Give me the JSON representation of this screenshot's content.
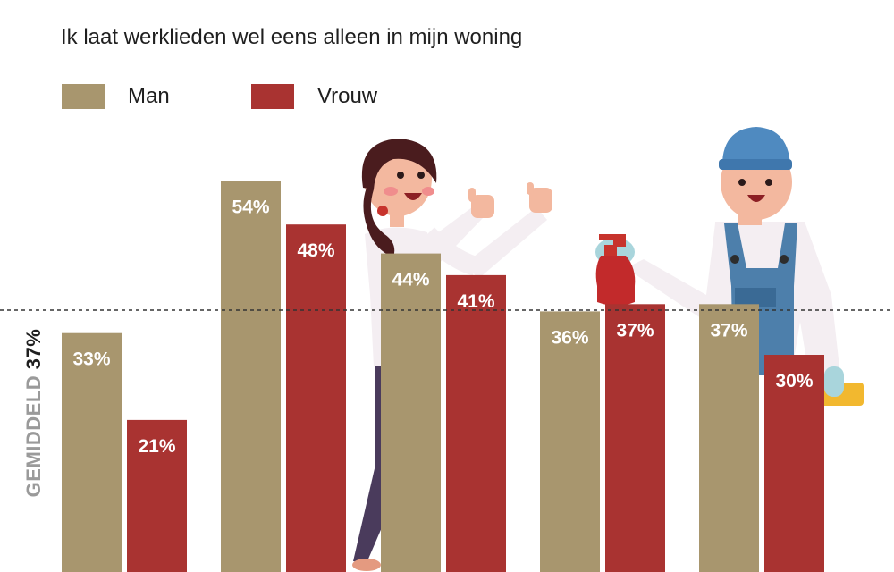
{
  "chart_data": {
    "type": "bar",
    "title": "Ik laat werklieden wel eens alleen in mijn woning",
    "categories": [
      "",
      "",
      "",
      "",
      ""
    ],
    "series": [
      {
        "name": "Man",
        "values": [
          33,
          54,
          44,
          36,
          37
        ],
        "labels": [
          "33%",
          "54%",
          "44%",
          "36%",
          "37%"
        ]
      },
      {
        "name": "Vrouw",
        "values": [
          21,
          48,
          41,
          37,
          30
        ],
        "labels": [
          "21%",
          "48%",
          "41%",
          "37%",
          "30%"
        ]
      }
    ],
    "average": {
      "text": "GEMIDDELD",
      "value": 37,
      "label": "37%"
    },
    "legend_position": "top-left",
    "grid": false
  },
  "colors": {
    "man": "#a8966e",
    "vrouw": "#a93331",
    "average_line": "#333333"
  },
  "illustrations": [
    "woman-thumbs-up-illustration",
    "handyman-with-spray-bottle-illustration"
  ]
}
